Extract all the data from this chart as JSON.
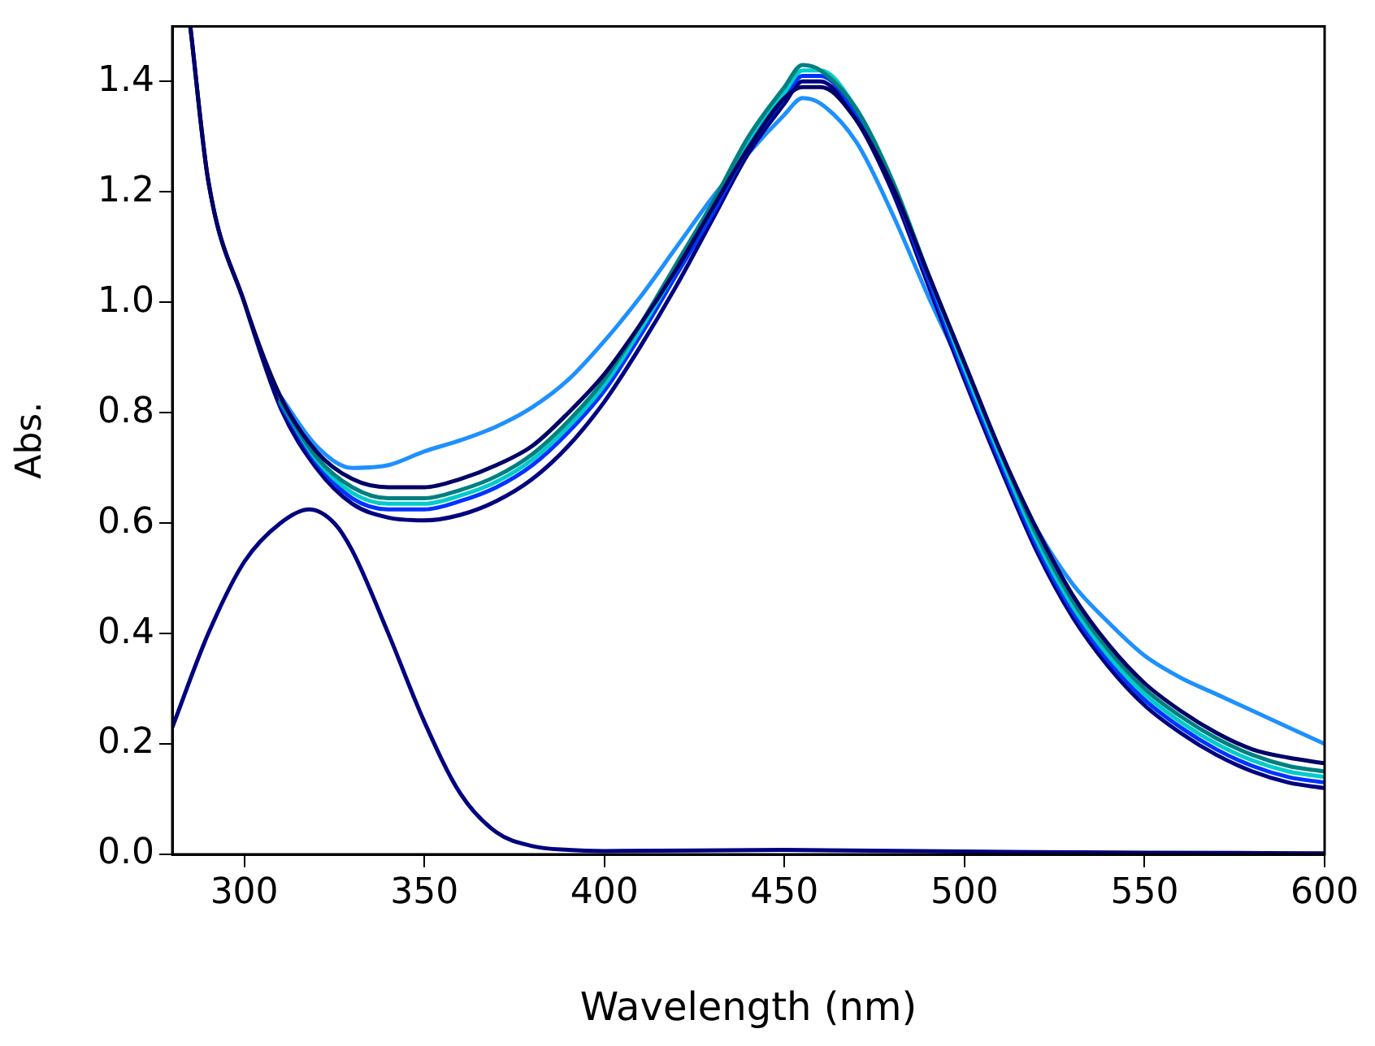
{
  "chart_data": {
    "type": "line",
    "xlabel": "Wavelength (nm)",
    "ylabel": "Abs.",
    "xlim": [
      280,
      600
    ],
    "ylim": [
      0,
      1.5
    ],
    "xticks": [
      300,
      350,
      400,
      450,
      500,
      550,
      600
    ],
    "yticks": [
      {
        "value": 0,
        "label": "0.0"
      },
      {
        "value": 0.2,
        "label": "0.2"
      },
      {
        "value": 0.4,
        "label": "0.4"
      },
      {
        "value": 0.6,
        "label": "0.6"
      },
      {
        "value": 0.8,
        "label": "0.8"
      },
      {
        "value": 1,
        "label": "1.0"
      },
      {
        "value": 1.2,
        "label": "1.2"
      },
      {
        "value": 1.4,
        "label": "1.4"
      }
    ],
    "line_style": "solid",
    "marker": "none",
    "series": [
      {
        "color": "#000066",
        "x": [
          285,
          290,
          300,
          310,
          320,
          330,
          340,
          350,
          360,
          370,
          380,
          390,
          400,
          410,
          420,
          430,
          440,
          450,
          455,
          460,
          470,
          480,
          490,
          500,
          510,
          520,
          530,
          540,
          550,
          560,
          570,
          580,
          590,
          600
        ],
        "values": [
          1.5,
          1.22,
          1.0,
          0.83,
          0.73,
          0.68,
          0.665,
          0.665,
          0.68,
          0.705,
          0.74,
          0.8,
          0.87,
          0.96,
          1.06,
          1.17,
          1.28,
          1.37,
          1.39,
          1.39,
          1.33,
          1.21,
          1.05,
          0.89,
          0.73,
          0.59,
          0.47,
          0.38,
          0.31,
          0.26,
          0.22,
          0.19,
          0.175,
          0.165
        ]
      },
      {
        "color": "#008080",
        "x": [
          310,
          320,
          330,
          340,
          350,
          360,
          370,
          380,
          390,
          400,
          410,
          420,
          430,
          440,
          450,
          455,
          460,
          470,
          480,
          490,
          500,
          510,
          520,
          530,
          540,
          550,
          560,
          570,
          580,
          590,
          600
        ],
        "values": [
          0.82,
          0.72,
          0.665,
          0.645,
          0.645,
          0.66,
          0.685,
          0.725,
          0.785,
          0.86,
          0.96,
          1.07,
          1.18,
          1.3,
          1.39,
          1.43,
          1.42,
          1.35,
          1.22,
          1.05,
          0.89,
          0.73,
          0.58,
          0.46,
          0.37,
          0.3,
          0.25,
          0.21,
          0.18,
          0.16,
          0.15
        ]
      },
      {
        "color": "#00cccc",
        "x": [
          310,
          320,
          330,
          340,
          350,
          360,
          370,
          380,
          390,
          400,
          410,
          420,
          430,
          440,
          450,
          455,
          460,
          470,
          480,
          490,
          500,
          510,
          520,
          530,
          540,
          550,
          560,
          570,
          580,
          590,
          600
        ],
        "values": [
          0.82,
          0.715,
          0.655,
          0.635,
          0.635,
          0.65,
          0.675,
          0.715,
          0.775,
          0.85,
          0.95,
          1.06,
          1.17,
          1.29,
          1.38,
          1.42,
          1.42,
          1.35,
          1.22,
          1.05,
          0.88,
          0.72,
          0.57,
          0.45,
          0.36,
          0.29,
          0.24,
          0.2,
          0.17,
          0.15,
          0.14
        ]
      },
      {
        "color": "#0033ff",
        "x": [
          310,
          320,
          330,
          340,
          350,
          360,
          370,
          380,
          390,
          400,
          410,
          420,
          430,
          440,
          450,
          455,
          460,
          470,
          480,
          490,
          500,
          510,
          520,
          530,
          540,
          550,
          560,
          570,
          580,
          590,
          600
        ],
        "values": [
          0.815,
          0.71,
          0.645,
          0.625,
          0.625,
          0.64,
          0.665,
          0.705,
          0.765,
          0.84,
          0.94,
          1.05,
          1.16,
          1.28,
          1.37,
          1.41,
          1.41,
          1.34,
          1.21,
          1.04,
          0.87,
          0.71,
          0.56,
          0.44,
          0.35,
          0.28,
          0.23,
          0.19,
          0.16,
          0.14,
          0.13
        ]
      },
      {
        "color": "#000080",
        "x": [
          285,
          290,
          300,
          310,
          320,
          330,
          340,
          350,
          360,
          370,
          380,
          390,
          400,
          410,
          420,
          430,
          440,
          450,
          455,
          460,
          470,
          480,
          490,
          500,
          510,
          520,
          530,
          540,
          550,
          560,
          570,
          580,
          590,
          600
        ],
        "values": [
          1.5,
          1.22,
          1.0,
          0.81,
          0.7,
          0.635,
          0.61,
          0.605,
          0.615,
          0.64,
          0.68,
          0.74,
          0.82,
          0.92,
          1.03,
          1.15,
          1.27,
          1.36,
          1.4,
          1.4,
          1.33,
          1.2,
          1.03,
          0.86,
          0.7,
          0.55,
          0.43,
          0.34,
          0.27,
          0.22,
          0.18,
          0.15,
          0.13,
          0.12
        ]
      },
      {
        "color": "#1e90ff",
        "x": [
          310,
          320,
          330,
          340,
          350,
          360,
          370,
          380,
          390,
          400,
          410,
          420,
          430,
          440,
          450,
          455,
          460,
          470,
          480,
          490,
          500,
          510,
          520,
          530,
          540,
          550,
          560,
          570,
          580,
          590,
          600
        ],
        "values": [
          0.83,
          0.74,
          0.7,
          0.705,
          0.73,
          0.75,
          0.775,
          0.81,
          0.86,
          0.93,
          1.01,
          1.1,
          1.19,
          1.27,
          1.34,
          1.37,
          1.36,
          1.29,
          1.16,
          1.01,
          0.87,
          0.72,
          0.59,
          0.49,
          0.42,
          0.36,
          0.32,
          0.29,
          0.26,
          0.23,
          0.2
        ]
      },
      {
        "color": "#000080",
        "x": [
          280,
          290,
          300,
          310,
          318,
          325,
          330,
          340,
          350,
          360,
          370,
          380,
          390,
          400,
          450,
          500,
          550,
          600
        ],
        "values": [
          0.23,
          0.4,
          0.53,
          0.6,
          0.625,
          0.6,
          0.55,
          0.4,
          0.24,
          0.11,
          0.04,
          0.015,
          0.008,
          0.006,
          0.008,
          0.005,
          0.003,
          0.002
        ]
      }
    ]
  }
}
